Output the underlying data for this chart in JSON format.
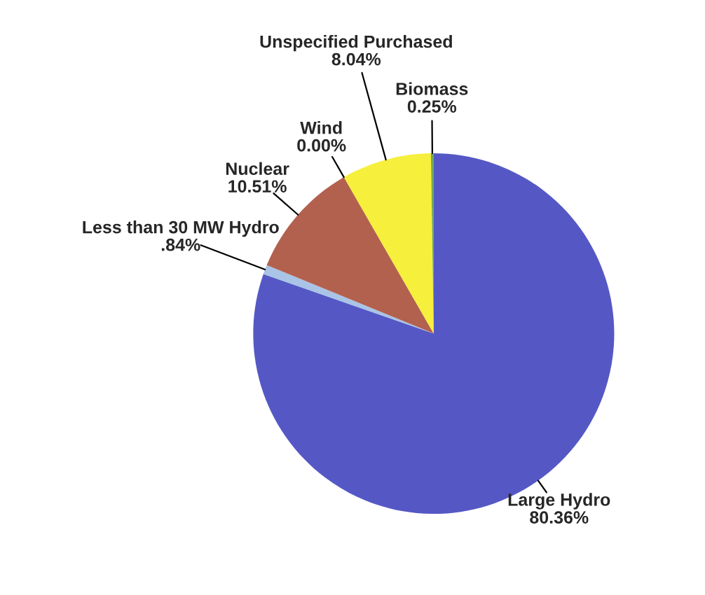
{
  "chart_data": {
    "type": "pie",
    "categories": [
      "Large Hydro",
      "Less than 30 MW Hydro",
      "Nuclear",
      "Wind",
      "Unspecified Purchased",
      "Biomass"
    ],
    "values": [
      80.36,
      0.84,
      10.51,
      0.0,
      8.04,
      0.25
    ],
    "value_labels": [
      "80.36%",
      ".84%",
      "10.51%",
      "0.00%",
      "8.04%",
      "0.25%"
    ],
    "colors": [
      "#5558c4",
      "#a9c4e6",
      "#b3614f",
      "#e0a050",
      "#f6ef3c",
      "#6fa85a"
    ]
  }
}
